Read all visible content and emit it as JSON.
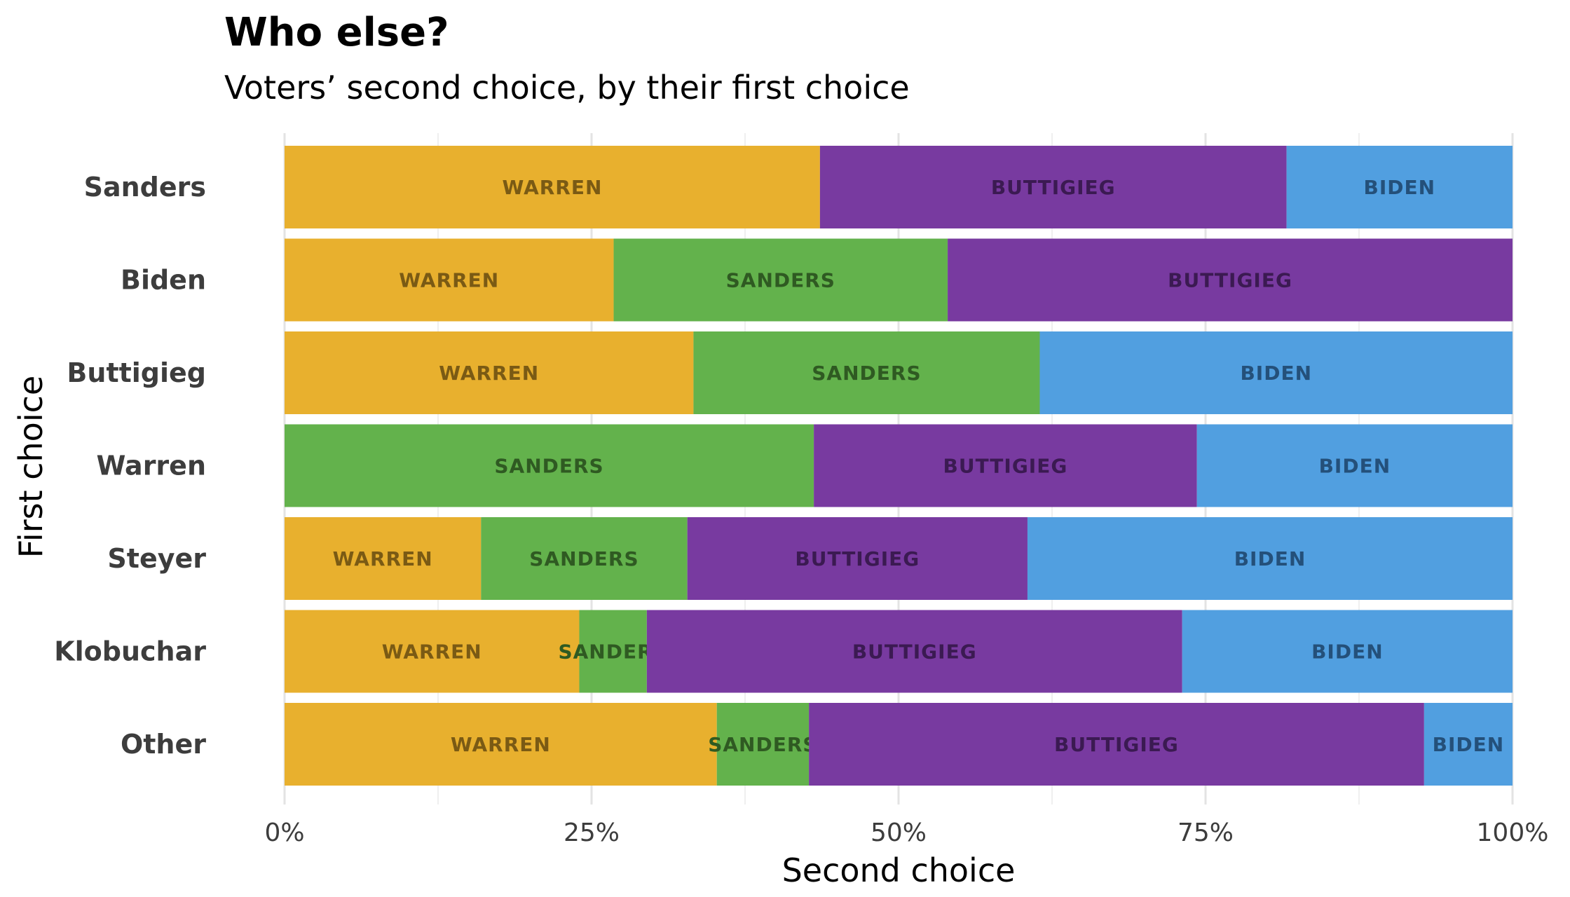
{
  "chart_data": {
    "type": "bar",
    "orientation": "horizontal",
    "stacked": true,
    "normalized": true,
    "title": "Who else?",
    "subtitle": "Voters’ second choice, by their first choice",
    "xlabel": "Second choice",
    "ylabel": "First choice",
    "xlim": [
      0,
      100
    ],
    "x_ticks": [
      "0%",
      "25%",
      "50%",
      "75%",
      "100%"
    ],
    "grid": true,
    "legend": "none (segments labeled inline)",
    "colors": {
      "WARREN": "#e8b02e",
      "SANDERS": "#63b24c",
      "BUTTIGIEG": "#783aa0",
      "BIDEN": "#519fe0"
    },
    "label_colors": {
      "WARREN": "#7a5a14",
      "SANDERS": "#2f5a22",
      "BUTTIGIEG": "#3b1a52",
      "BIDEN": "#24507a"
    },
    "categories": [
      "Sanders",
      "Biden",
      "Buttigieg",
      "Warren",
      "Steyer",
      "Klobuchar",
      "Other"
    ],
    "rows": [
      {
        "category": "Sanders",
        "segments": [
          {
            "name": "WARREN",
            "value": 43.6
          },
          {
            "name": "BUTTIGIEG",
            "value": 38.0
          },
          {
            "name": "BIDEN",
            "value": 18.4
          }
        ]
      },
      {
        "category": "Biden",
        "segments": [
          {
            "name": "WARREN",
            "value": 26.8
          },
          {
            "name": "SANDERS",
            "value": 27.2
          },
          {
            "name": "BUTTIGIEG",
            "value": 46.0
          }
        ]
      },
      {
        "category": "Buttigieg",
        "segments": [
          {
            "name": "WARREN",
            "value": 33.3
          },
          {
            "name": "SANDERS",
            "value": 28.2
          },
          {
            "name": "BIDEN",
            "value": 38.5
          }
        ]
      },
      {
        "category": "Warren",
        "segments": [
          {
            "name": "SANDERS",
            "value": 43.1
          },
          {
            "name": "BUTTIGIEG",
            "value": 31.2
          },
          {
            "name": "BIDEN",
            "value": 25.7
          }
        ]
      },
      {
        "category": "Steyer",
        "segments": [
          {
            "name": "WARREN",
            "value": 16.0
          },
          {
            "name": "SANDERS",
            "value": 16.8
          },
          {
            "name": "BUTTIGIEG",
            "value": 27.7
          },
          {
            "name": "BIDEN",
            "value": 39.5
          }
        ]
      },
      {
        "category": "Klobuchar",
        "segments": [
          {
            "name": "WARREN",
            "value": 24.0
          },
          {
            "name": "SANDERS",
            "value": 5.5
          },
          {
            "name": "BUTTIGIEG",
            "value": 43.6
          },
          {
            "name": "BIDEN",
            "value": 26.9
          }
        ]
      },
      {
        "category": "Other",
        "segments": [
          {
            "name": "WARREN",
            "value": 35.2
          },
          {
            "name": "SANDERS",
            "value": 7.5
          },
          {
            "name": "BUTTIGIEG",
            "value": 50.1
          },
          {
            "name": "BIDEN",
            "value": 7.2
          }
        ]
      }
    ]
  }
}
